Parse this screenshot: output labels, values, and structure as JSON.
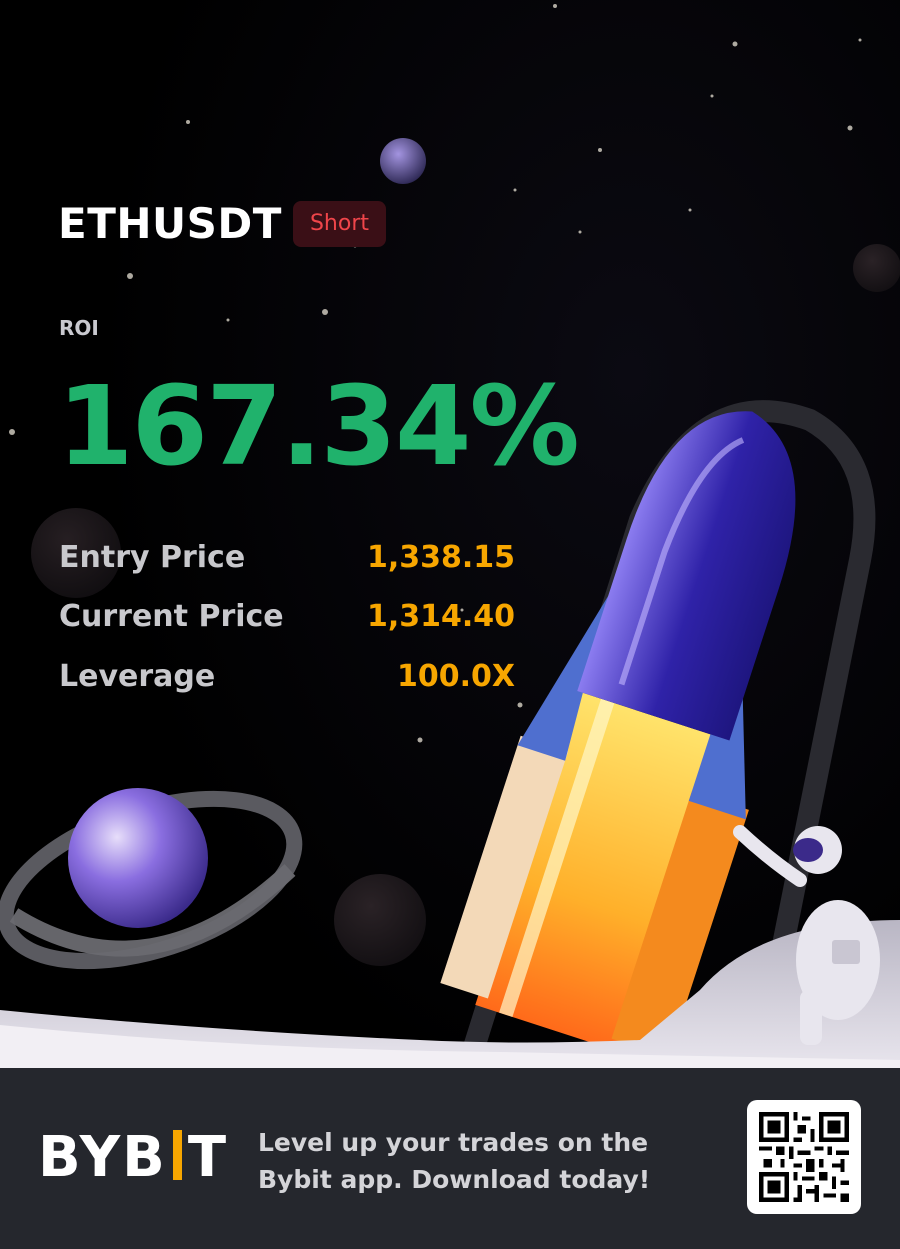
{
  "position": {
    "pair": "ETHUSDT",
    "side": "Short"
  },
  "roi": {
    "label": "ROI",
    "value": "167.34%"
  },
  "stats": [
    {
      "label": "Entry Price",
      "value": "1,338.15"
    },
    {
      "label": "Current Price",
      "value": "1,314.40"
    },
    {
      "label": "Leverage",
      "value": "100.0X"
    }
  ],
  "footer": {
    "logo_left": "BYB",
    "logo_right": "T",
    "tagline": "Level up your trades on the Bybit app. Download today!"
  },
  "icons": {
    "logo": "bybit-logo",
    "qr": "qr-code-icon",
    "illustration": "rocket-astronaut-illustration"
  },
  "colors": {
    "profit": "#20b26c",
    "short_badge_text": "#ef454a",
    "short_badge_bg": "#3a0f16",
    "accent": "#f7a600",
    "footer_bg": "#25272d"
  }
}
